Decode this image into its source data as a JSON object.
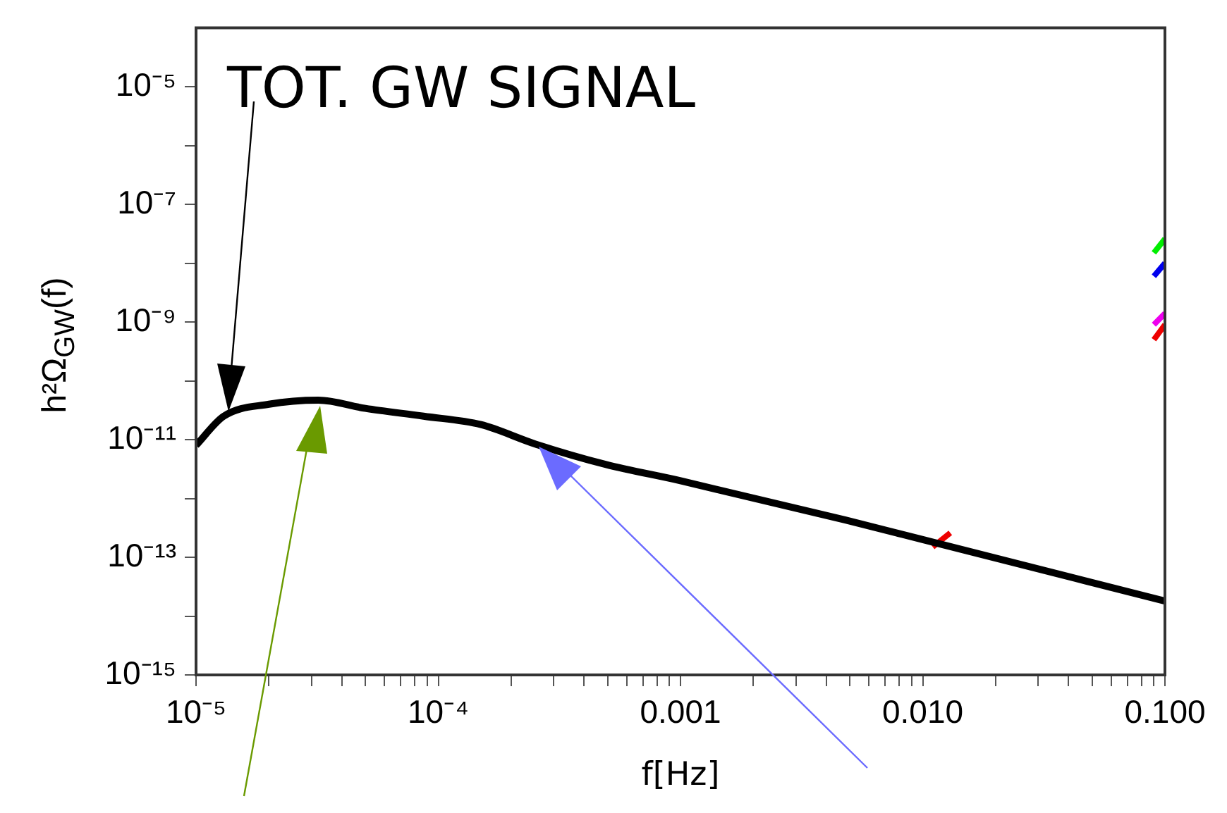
{
  "chart_data": {
    "type": "line",
    "xlabel": "f[Hz]",
    "ylabel": "h²Ω$_{GW}$(f)",
    "log": "xy",
    "grid": false,
    "legend": false,
    "marker": "none",
    "line_style": "solid",
    "xlim": [
      1e-05,
      0.1
    ],
    "ylim": [
      1e-15,
      0.0001
    ],
    "xticks": [
      {
        "value": 1e-05,
        "label": "10⁻⁵"
      },
      {
        "value": 2e-05,
        "label": null
      },
      {
        "value": 3e-05,
        "label": null
      },
      {
        "value": 4e-05,
        "label": null
      },
      {
        "value": 5e-05,
        "label": null
      },
      {
        "value": 6e-05,
        "label": null
      },
      {
        "value": 7e-05,
        "label": null
      },
      {
        "value": 8e-05,
        "label": null
      },
      {
        "value": 9e-05,
        "label": null
      },
      {
        "value": 0.0001,
        "label": "10⁻⁴"
      },
      {
        "value": 0.0002,
        "label": null
      },
      {
        "value": 0.0003,
        "label": null
      },
      {
        "value": 0.0004,
        "label": null
      },
      {
        "value": 0.0005,
        "label": null
      },
      {
        "value": 0.0006,
        "label": null
      },
      {
        "value": 0.0007,
        "label": null
      },
      {
        "value": 0.0008,
        "label": null
      },
      {
        "value": 0.0009,
        "label": null
      },
      {
        "value": 0.001,
        "label": "0.001"
      },
      {
        "value": 0.002,
        "label": null
      },
      {
        "value": 0.003,
        "label": null
      },
      {
        "value": 0.004,
        "label": null
      },
      {
        "value": 0.005,
        "label": null
      },
      {
        "value": 0.006,
        "label": null
      },
      {
        "value": 0.007,
        "label": null
      },
      {
        "value": 0.008,
        "label": null
      },
      {
        "value": 0.009,
        "label": null
      },
      {
        "value": 0.01,
        "label": "0.010"
      },
      {
        "value": 0.02,
        "label": null
      },
      {
        "value": 0.03,
        "label": null
      },
      {
        "value": 0.04,
        "label": null
      },
      {
        "value": 0.05,
        "label": null
      },
      {
        "value": 0.06,
        "label": null
      },
      {
        "value": 0.07,
        "label": null
      },
      {
        "value": 0.08,
        "label": null
      },
      {
        "value": 0.09,
        "label": null
      },
      {
        "value": 0.1,
        "label": "0.100"
      }
    ],
    "yticks": [
      {
        "value": 1e-15,
        "label": "10⁻¹⁵"
      },
      {
        "value": 1e-14,
        "label": null
      },
      {
        "value": 1e-13,
        "label": "10⁻¹³"
      },
      {
        "value": 1e-12,
        "label": null
      },
      {
        "value": 1e-11,
        "label": "10⁻¹¹"
      },
      {
        "value": 1e-10,
        "label": null
      },
      {
        "value": 1e-09,
        "label": "10⁻⁹"
      },
      {
        "value": 1e-08,
        "label": null
      },
      {
        "value": 1e-07,
        "label": "10⁻⁷"
      },
      {
        "value": 1e-06,
        "label": null
      },
      {
        "value": 1e-05,
        "label": "10⁻⁵"
      }
    ],
    "annotations": [
      "TOT. GW SIGNAL"
    ],
    "series": [
      {
        "color": "#000000",
        "x": [
          1e-05,
          1.3e-05,
          2e-05,
          3.2e-05,
          5e-05,
          8.7e-05,
          0.00015,
          0.00025,
          0.00049,
          0.001,
          0.0048,
          0.01,
          0.1
        ],
        "values": [
          8e-12,
          2.5e-11,
          4e-11,
          4.7e-11,
          3.4e-11,
          2.5e-11,
          1.8e-11,
          8.5e-12,
          3.8e-12,
          2e-12,
          4.3e-13,
          2e-13,
          1.8e-14
        ]
      },
      {
        "color": "#00ee00",
        "x": [
          0.09,
          0.1
        ],
        "values": [
          1.5e-08,
          2.6e-08
        ]
      },
      {
        "color": "#0000ee",
        "x": [
          0.09,
          0.1
        ],
        "values": [
          6e-09,
          1e-08
        ]
      },
      {
        "color": "#ee00ee",
        "x": [
          0.09,
          0.1
        ],
        "values": [
          9e-10,
          1.4e-09
        ]
      },
      {
        "color": "#ee0000",
        "x": [
          0.09,
          0.1
        ],
        "values": [
          5e-10,
          9e-10
        ]
      },
      {
        "color": "#ee0000",
        "x": [
          0.011,
          0.013
        ],
        "values": [
          1.5e-13,
          2.6e-13
        ]
      }
    ]
  }
}
